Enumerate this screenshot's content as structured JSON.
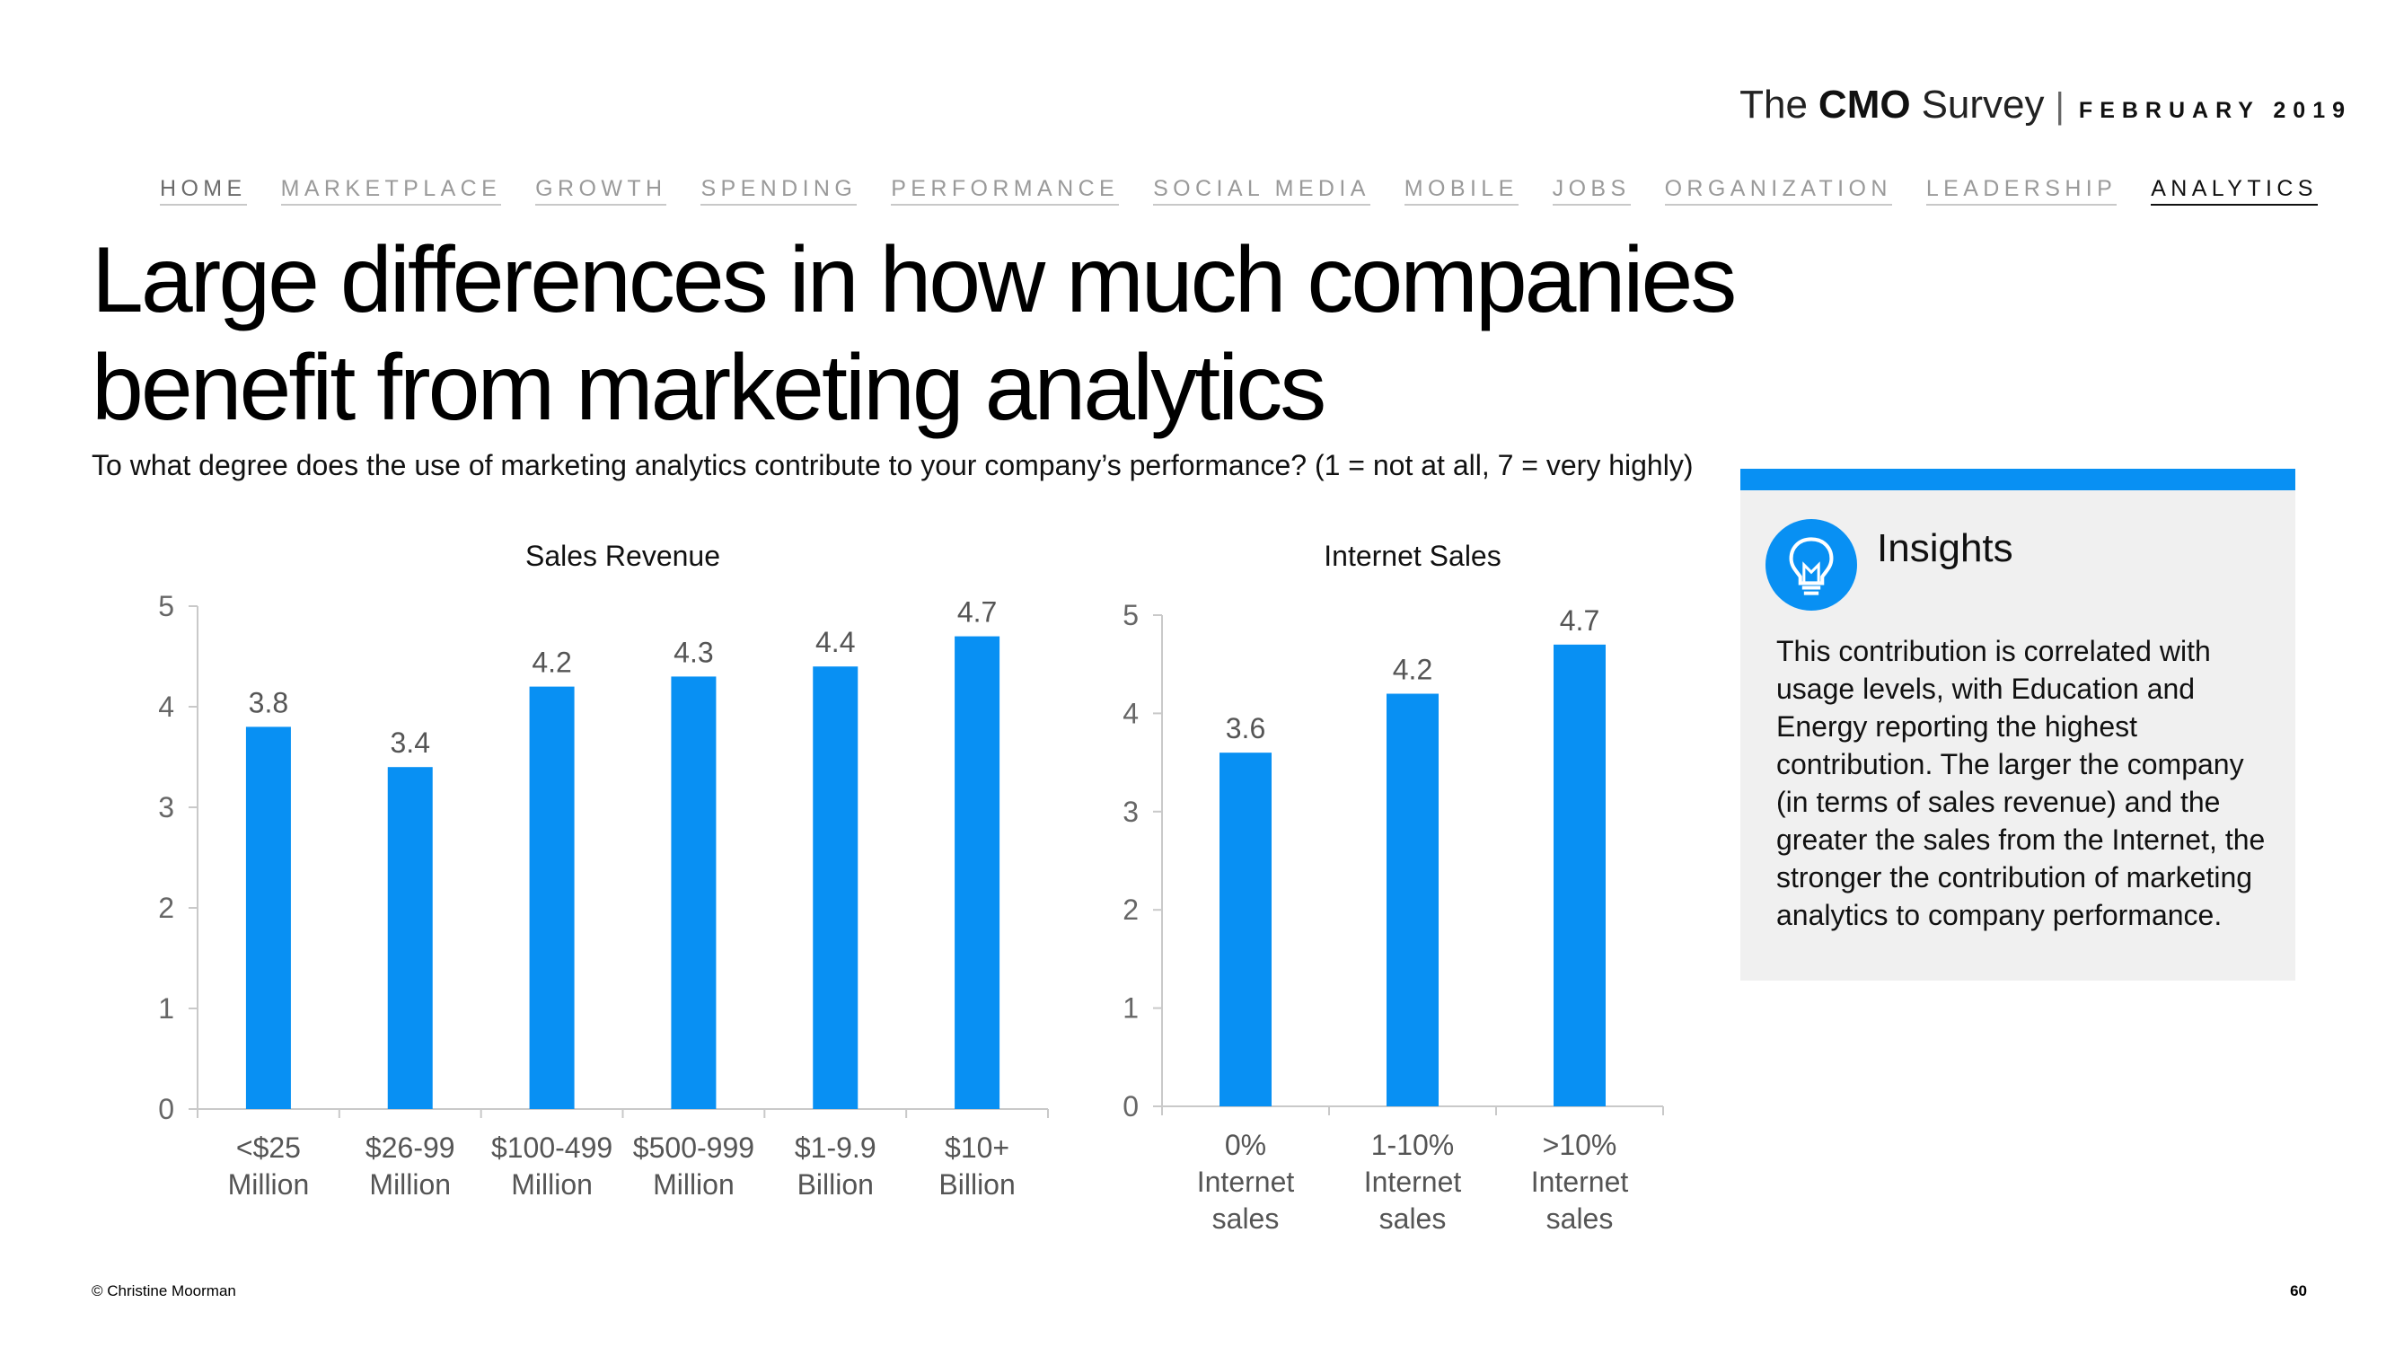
{
  "brand": {
    "the": "The",
    "cmo": "CMO",
    "survey": "Survey",
    "separator": "|",
    "date": "FEBRUARY 2019"
  },
  "nav": [
    {
      "label": "HOME"
    },
    {
      "label": "MARKETPLACE"
    },
    {
      "label": "GROWTH"
    },
    {
      "label": "SPENDING"
    },
    {
      "label": "PERFORMANCE"
    },
    {
      "label": "SOCIAL MEDIA"
    },
    {
      "label": "MOBILE"
    },
    {
      "label": "JOBS"
    },
    {
      "label": "ORGANIZATION"
    },
    {
      "label": "LEADERSHIP"
    },
    {
      "label": "ANALYTICS"
    }
  ],
  "title": "Large differences in how much companies benefit from marketing analytics",
  "subtitle": "To what degree does the use of marketing analytics contribute to your company’s performance? (1 = not at all, 7 = very highly)",
  "chart_data": [
    {
      "type": "bar",
      "title": "Sales Revenue",
      "categories": [
        "<$25 Million",
        "$26-99 Million",
        "$100-499 Million",
        "$500-999 Million",
        "$1-9.9 Billion",
        "$10+ Billion"
      ],
      "category_lines": [
        [
          "<$25",
          "Million"
        ],
        [
          "$26-99",
          "Million"
        ],
        [
          "$100-499",
          "Million"
        ],
        [
          "$500-999",
          "Million"
        ],
        [
          "$1-9.9",
          "Billion"
        ],
        [
          "$10+",
          "Billion"
        ]
      ],
      "values": [
        3.8,
        3.4,
        4.2,
        4.3,
        4.4,
        4.7
      ],
      "labels": [
        "3.8",
        "3.4",
        "4.2",
        "4.3",
        "4.4",
        "4.7"
      ],
      "ylim": [
        0,
        5
      ],
      "yticks": [
        "0",
        "1",
        "2",
        "3",
        "4",
        "5"
      ],
      "grid": false,
      "color": "#0890f3"
    },
    {
      "type": "bar",
      "title": "Internet Sales",
      "categories": [
        "0% Internet sales",
        "1-10% Internet sales",
        ">10% Internet sales"
      ],
      "category_lines": [
        [
          "0%",
          "Internet",
          "sales"
        ],
        [
          "1-10%",
          "Internet",
          "sales"
        ],
        [
          ">10%",
          "Internet",
          "sales"
        ]
      ],
      "values": [
        3.6,
        4.2,
        4.7
      ],
      "labels": [
        "3.6",
        "4.2",
        "4.7"
      ],
      "ylim": [
        0,
        5
      ],
      "yticks": [
        "0",
        "1",
        "2",
        "3",
        "4",
        "5"
      ],
      "grid": false,
      "color": "#0890f3"
    }
  ],
  "insights": {
    "icon": "lightbulb-icon",
    "title": "Insights",
    "text": "This contribution is correlated with usage levels, with Education and Energy reporting the highest contribution. The larger the company (in terms of sales revenue) and the greater the sales from the Internet, the stronger the contribution of marketing analytics to company performance.",
    "accent": "#0890f3"
  },
  "footer": {
    "copyright": "© Christine Moorman",
    "page": "60"
  }
}
